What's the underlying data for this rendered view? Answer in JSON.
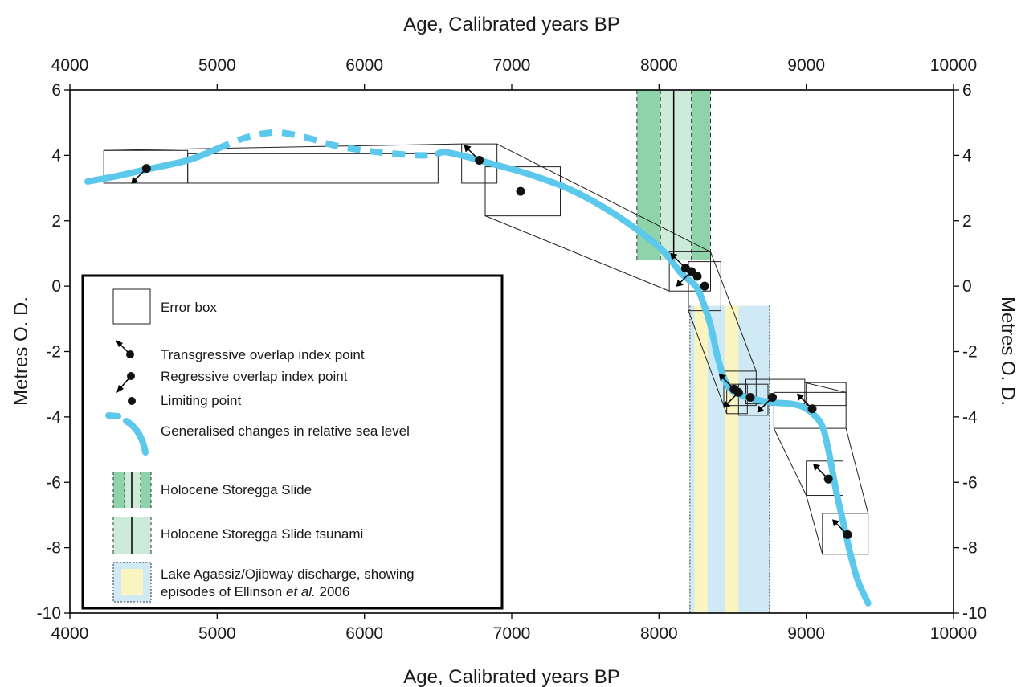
{
  "chart_data": {
    "type": "line",
    "xlabel_bottom": "Age, Calibrated years BP",
    "xlabel_top": "Age, Calibrated years BP",
    "ylabel_left": "Metres O. D.",
    "ylabel_right": "Metres O. D.",
    "xlim": [
      4000,
      10000
    ],
    "ylim": [
      -10,
      6
    ],
    "x_ticks": [
      4000,
      5000,
      6000,
      7000,
      8000,
      9000,
      10000
    ],
    "y_ticks": [
      6,
      4,
      2,
      0,
      -2,
      -4,
      -6,
      -8,
      -10
    ],
    "grid": false,
    "legend_position": "bottom-left",
    "colors": {
      "sea_level": "#5bc8ec",
      "slide": "#8fd3aa",
      "tsunami": "#cdebd8",
      "agassiz_blue": "#cfe9f5",
      "agassiz_yellow": "#f9f4c0",
      "axis": "#000000"
    },
    "slide_band": {
      "x": [
        7850,
        8350
      ],
      "inner_light": [
        8010,
        8220
      ],
      "event_line": 8100
    },
    "agassiz_band": {
      "x": [
        8210,
        8750
      ],
      "episodes": [
        [
          8240,
          8330
        ],
        [
          8450,
          8540
        ]
      ]
    },
    "sea_level_curve": {
      "solid_1": [
        [
          4120,
          3.2
        ],
        [
          4300,
          3.35
        ],
        [
          4500,
          3.55
        ],
        [
          4800,
          3.85
        ],
        [
          5000,
          4.2
        ]
      ],
      "dashed": [
        [
          5000,
          4.2
        ],
        [
          5200,
          4.55
        ],
        [
          5400,
          4.7
        ],
        [
          5600,
          4.55
        ],
        [
          5800,
          4.3
        ],
        [
          6000,
          4.15
        ],
        [
          6200,
          4.05
        ],
        [
          6400,
          4.0
        ],
        [
          6500,
          4.05
        ]
      ],
      "solid_2": [
        [
          6500,
          4.05
        ],
        [
          6550,
          4.1
        ],
        [
          6700,
          3.95
        ],
        [
          6900,
          3.7
        ],
        [
          7100,
          3.45
        ],
        [
          7400,
          2.95
        ],
        [
          7700,
          2.2
        ],
        [
          8000,
          1.2
        ],
        [
          8150,
          0.4
        ],
        [
          8250,
          0.0
        ],
        [
          8300,
          -0.5
        ],
        [
          8350,
          -1.2
        ],
        [
          8400,
          -2.2
        ],
        [
          8450,
          -2.9
        ],
        [
          8500,
          -3.2
        ],
        [
          8600,
          -3.4
        ],
        [
          8750,
          -3.55
        ],
        [
          8900,
          -3.6
        ],
        [
          9000,
          -3.75
        ],
        [
          9100,
          -4.2
        ],
        [
          9150,
          -5.0
        ],
        [
          9200,
          -6.2
        ],
        [
          9250,
          -7.2
        ],
        [
          9300,
          -8.2
        ],
        [
          9350,
          -9.0
        ],
        [
          9420,
          -9.7
        ]
      ]
    },
    "points": [
      {
        "x": 4520,
        "y": 3.6,
        "type": "regressive"
      },
      {
        "x": 6780,
        "y": 3.85,
        "type": "transgressive"
      },
      {
        "x": 7060,
        "y": 2.9,
        "type": "limiting"
      },
      {
        "x": 8180,
        "y": 0.55,
        "type": "transgressive"
      },
      {
        "x": 8220,
        "y": 0.45,
        "type": "regressive"
      },
      {
        "x": 8260,
        "y": 0.3,
        "type": "limiting"
      },
      {
        "x": 8310,
        "y": 0.0,
        "type": "limiting"
      },
      {
        "x": 8510,
        "y": -3.15,
        "type": "transgressive"
      },
      {
        "x": 8540,
        "y": -3.25,
        "type": "regressive"
      },
      {
        "x": 8620,
        "y": -3.4,
        "type": "limiting"
      },
      {
        "x": 8770,
        "y": -3.4,
        "type": "regressive"
      },
      {
        "x": 9040,
        "y": -3.75,
        "type": "transgressive"
      },
      {
        "x": 9150,
        "y": -5.9,
        "type": "transgressive"
      },
      {
        "x": 9280,
        "y": -7.6,
        "type": "transgressive"
      }
    ],
    "error_boxes": [
      {
        "x": [
          4230,
          4800
        ],
        "y": [
          3.15,
          4.15
        ]
      },
      {
        "x": [
          4800,
          6500
        ],
        "y": [
          3.15,
          4.05
        ]
      },
      {
        "x": [
          6660,
          6900
        ],
        "y": [
          3.15,
          4.35
        ]
      },
      {
        "x": [
          6820,
          7330
        ],
        "y": [
          2.15,
          3.65
        ]
      },
      {
        "x": [
          8070,
          8350
        ],
        "y": [
          -0.15,
          1.05
        ]
      },
      {
        "x": [
          8200,
          8420
        ],
        "y": [
          -0.75,
          0.75
        ]
      },
      {
        "x": [
          8440,
          8660
        ],
        "y": [
          -3.65,
          -2.6
        ]
      },
      {
        "x": [
          8460,
          8600
        ],
        "y": [
          -3.9,
          -3.0
        ]
      },
      {
        "x": [
          8540,
          8740
        ],
        "y": [
          -3.95,
          -3.0
        ]
      },
      {
        "x": [
          8590,
          8990
        ],
        "y": [
          -3.6,
          -2.85
        ]
      },
      {
        "x": [
          8780,
          9270
        ],
        "y": [
          -4.35,
          -3.25
        ]
      },
      {
        "x": [
          9000,
          9270
        ],
        "y": [
          -3.65,
          -2.95
        ]
      },
      {
        "x": [
          9000,
          9250
        ],
        "y": [
          -6.4,
          -5.35
        ]
      },
      {
        "x": [
          9110,
          9420
        ],
        "y": [
          -8.2,
          -6.95
        ]
      }
    ],
    "envelope_lines": [
      [
        [
          4230,
          4.15
        ],
        [
          6660,
          4.35
        ]
      ],
      [
        [
          6900,
          4.35
        ],
        [
          8350,
          1.05
        ]
      ],
      [
        [
          6820,
          2.15
        ],
        [
          8070,
          -0.15
        ]
      ],
      [
        [
          8350,
          1.05
        ],
        [
          8660,
          -2.6
        ]
      ],
      [
        [
          8200,
          -0.75
        ],
        [
          8460,
          -3.9
        ]
      ],
      [
        [
          8990,
          -2.95
        ],
        [
          9270,
          -3.25
        ]
      ],
      [
        [
          9270,
          -4.35
        ],
        [
          9420,
          -6.95
        ]
      ],
      [
        [
          8780,
          -4.35
        ],
        [
          9000,
          -6.4
        ]
      ],
      [
        [
          9110,
          -8.2
        ],
        [
          9000,
          -6.4
        ]
      ]
    ]
  },
  "legend": {
    "error_box": "Error box",
    "transgressive": "Transgressive overlap index point",
    "regressive": "Regressive overlap index point",
    "limiting": "Limiting point",
    "sea_level": "Generalised changes in relative sea level",
    "slide": "Holocene Storegga Slide",
    "tsunami": "Holocene Storegga Slide tsunami",
    "agassiz_line1": "Lake Agassiz/Ojibway discharge, showing",
    "agassiz_line2_pre": "episodes of Ellinson ",
    "agassiz_line2_italic": "et al.",
    "agassiz_line2_post": " 2006"
  }
}
